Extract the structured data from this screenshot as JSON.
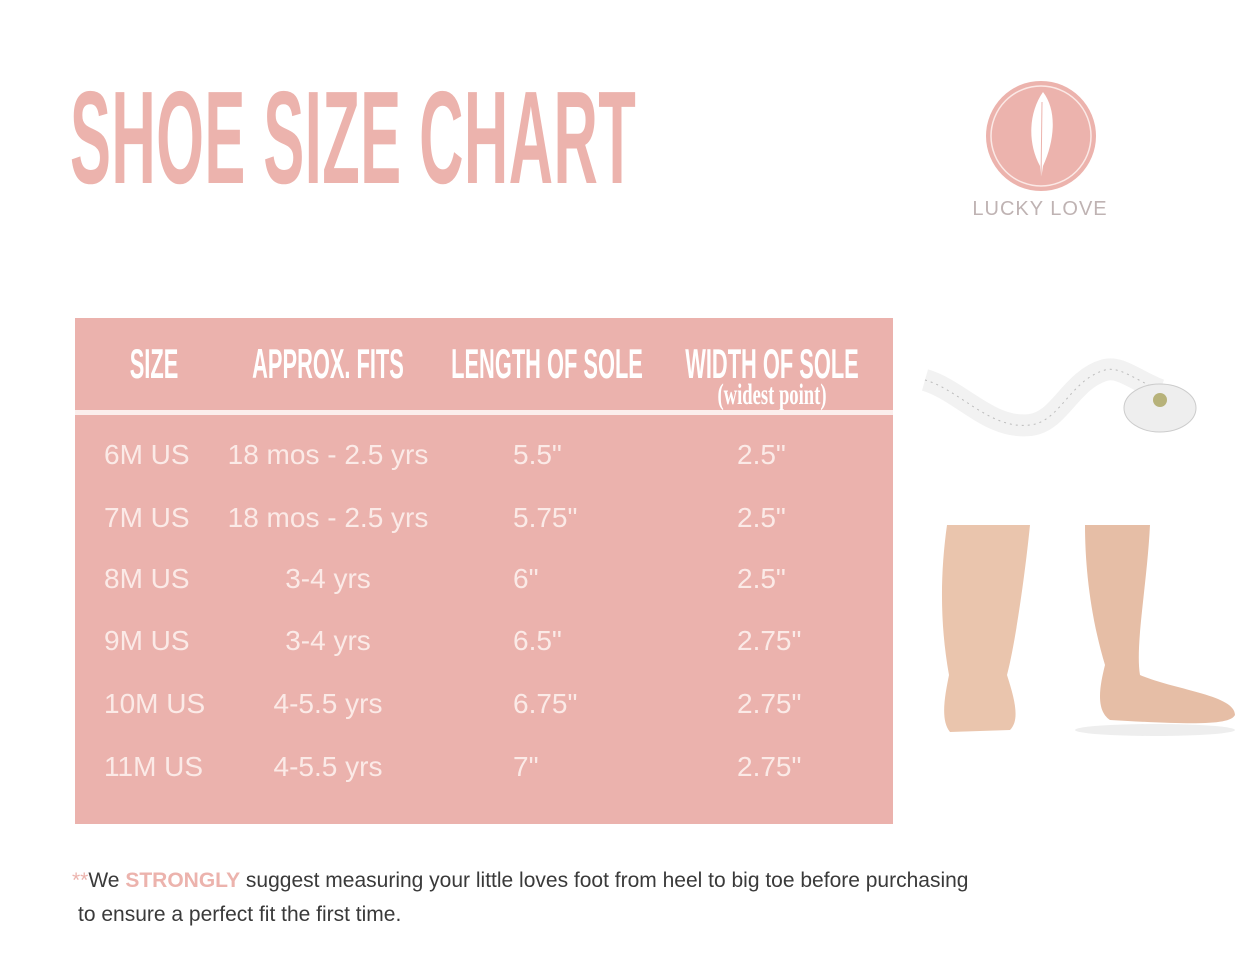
{
  "title": "SHOE SIZE CHART",
  "brand": {
    "name": "LUCKY LOVE",
    "icon": "feather-icon",
    "color": "#ecb3ad"
  },
  "table": {
    "headers": [
      "SIZE",
      "APPROX. FITS",
      "LENGTH OF SOLE",
      "WIDTH OF SOLE"
    ],
    "width_subheader": "(widest point)",
    "rows": [
      [
        "6M US",
        "18 mos - 2.5 yrs",
        "5.5\"",
        "2.5\""
      ],
      [
        "7M US",
        "18 mos - 2.5 yrs",
        "5.75\"",
        "2.5\""
      ],
      [
        "8M US",
        "3-4 yrs",
        "6\"",
        "2.5\""
      ],
      [
        "9M US",
        "3-4 yrs",
        "6.5\"",
        "2.75\""
      ],
      [
        "10M US",
        "4-5.5 yrs",
        "6.75\"",
        "2.75\""
      ],
      [
        "11M US",
        "4-5.5  yrs",
        "7\"",
        "2.75\""
      ]
    ]
  },
  "images": {
    "tape": "tape-measure-photo",
    "feet": "baby-feet-photo"
  },
  "note": {
    "prefix": "**",
    "we": "We ",
    "emphasis": "STRONGLY",
    "line1": " suggest measuring your little loves foot from heel to big toe before purchasing",
    "line2": "to ensure a perfect fit the first time."
  },
  "colors": {
    "accent": "#ecb3ad",
    "table_bg": "#ebb2ad",
    "text": "#3a3a3a"
  }
}
